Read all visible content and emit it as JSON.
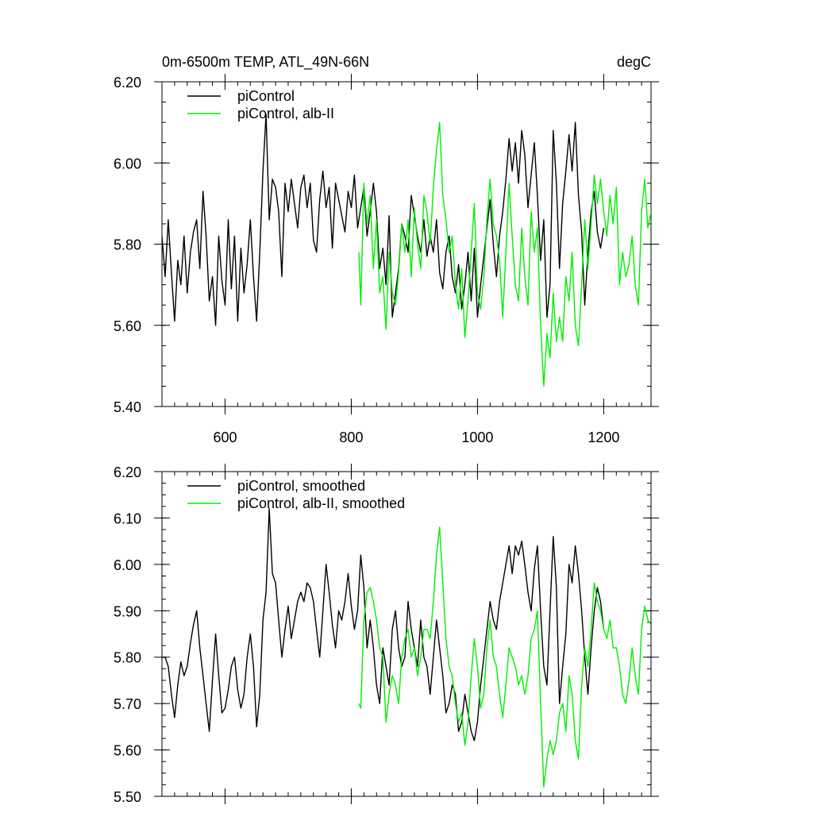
{
  "colors": {
    "series1": "#000000",
    "series2": "#00ee00",
    "axis": "#000000"
  },
  "chart_data": [
    {
      "type": "line",
      "title": "0m-6500m TEMP, ATL_49N-66N",
      "units": "degC",
      "xlim": [
        500,
        1275
      ],
      "ylim": [
        5.4,
        6.2
      ],
      "xticks": [
        600,
        800,
        1000,
        1200
      ],
      "xtick_labels": [
        "600",
        "800",
        "1000",
        "1200"
      ],
      "yticks": [
        5.4,
        5.6,
        5.8,
        6.0,
        6.2
      ],
      "ytick_labels": [
        "5.40",
        "5.60",
        "5.80",
        "6.00",
        "6.20"
      ],
      "legend": "top-left",
      "series": [
        {
          "name": "piControl",
          "x": [
            500,
            505,
            510,
            515,
            520,
            525,
            530,
            535,
            540,
            545,
            550,
            555,
            560,
            565,
            570,
            575,
            580,
            585,
            590,
            595,
            600,
            605,
            610,
            615,
            620,
            625,
            630,
            635,
            640,
            645,
            650,
            655,
            660,
            665,
            670,
            675,
            680,
            685,
            690,
            695,
            700,
            705,
            710,
            715,
            720,
            725,
            730,
            735,
            740,
            745,
            750,
            755,
            760,
            765,
            770,
            775,
            780,
            785,
            790,
            795,
            800,
            805,
            810,
            815,
            820,
            825,
            830,
            835,
            840,
            845,
            850,
            855,
            860,
            865,
            870,
            875,
            880,
            885,
            890,
            895,
            900,
            905,
            910,
            915,
            920,
            925,
            930,
            935,
            940,
            945,
            950,
            955,
            960,
            965,
            970,
            975,
            980,
            985,
            990,
            995,
            1000,
            1005,
            1010,
            1015,
            1020,
            1025,
            1030,
            1035,
            1040,
            1045,
            1050,
            1055,
            1060,
            1065,
            1070,
            1075,
            1080,
            1085,
            1090,
            1095,
            1100,
            1105,
            1110,
            1115,
            1120,
            1125,
            1130,
            1135,
            1140,
            1145,
            1150,
            1155,
            1160,
            1165,
            1170,
            1175,
            1180,
            1185,
            1190,
            1195,
            1200
          ],
          "values": [
            5.82,
            5.72,
            5.86,
            5.73,
            5.61,
            5.76,
            5.7,
            5.82,
            5.68,
            5.78,
            5.83,
            5.86,
            5.74,
            5.93,
            5.82,
            5.66,
            5.72,
            5.6,
            5.82,
            5.71,
            5.65,
            5.86,
            5.69,
            5.82,
            5.61,
            5.79,
            5.68,
            5.75,
            5.86,
            5.72,
            5.61,
            5.78,
            5.98,
            6.12,
            5.86,
            5.96,
            5.94,
            5.88,
            5.72,
            5.95,
            5.88,
            5.96,
            5.9,
            5.84,
            5.94,
            5.97,
            5.89,
            5.95,
            5.81,
            5.78,
            5.91,
            5.98,
            5.89,
            5.94,
            5.79,
            5.95,
            5.91,
            5.87,
            5.83,
            5.93,
            5.89,
            5.97,
            5.84,
            5.89,
            5.94,
            5.82,
            5.88,
            5.95,
            5.88,
            5.74,
            5.79,
            5.7,
            5.87,
            5.62,
            5.68,
            5.74,
            5.85,
            5.82,
            5.78,
            5.92,
            5.87,
            5.82,
            5.78,
            5.86,
            5.77,
            5.82,
            5.78,
            5.86,
            5.73,
            5.69,
            5.78,
            5.82,
            5.72,
            5.68,
            5.75,
            5.64,
            5.7,
            5.78,
            5.66,
            5.79,
            5.62,
            5.7,
            5.77,
            5.84,
            5.91,
            5.8,
            5.72,
            5.82,
            5.88,
            5.96,
            6.06,
            5.98,
            6.05,
            5.95,
            6.08,
            6.02,
            5.89,
            5.97,
            6.05,
            5.92,
            5.76,
            5.86,
            5.62,
            5.7,
            6.08,
            5.95,
            5.74,
            5.9,
            5.98,
            6.07,
            5.98,
            6.1,
            5.92,
            5.83,
            5.65,
            5.78,
            5.88,
            5.93,
            5.83,
            5.79,
            5.84
          ]
        },
        {
          "name": "piControl, alb-II",
          "x": [
            812,
            815,
            820,
            825,
            830,
            835,
            840,
            845,
            850,
            855,
            860,
            865,
            870,
            875,
            880,
            885,
            890,
            895,
            900,
            905,
            910,
            915,
            920,
            925,
            930,
            935,
            940,
            945,
            950,
            955,
            960,
            965,
            970,
            975,
            980,
            985,
            990,
            995,
            1000,
            1005,
            1010,
            1015,
            1020,
            1025,
            1030,
            1035,
            1040,
            1045,
            1050,
            1055,
            1060,
            1065,
            1070,
            1075,
            1080,
            1085,
            1090,
            1095,
            1100,
            1105,
            1110,
            1115,
            1120,
            1125,
            1130,
            1135,
            1140,
            1145,
            1150,
            1155,
            1160,
            1165,
            1170,
            1175,
            1180,
            1185,
            1190,
            1195,
            1200,
            1205,
            1210,
            1215,
            1220,
            1225,
            1230,
            1235,
            1240,
            1245,
            1250,
            1255,
            1260,
            1265,
            1270,
            1275
          ],
          "values": [
            5.78,
            5.65,
            5.95,
            5.85,
            5.92,
            5.74,
            5.86,
            5.68,
            5.72,
            5.59,
            5.78,
            5.68,
            5.65,
            5.73,
            5.85,
            5.78,
            5.86,
            5.72,
            5.89,
            5.8,
            5.74,
            5.92,
            5.88,
            5.8,
            5.94,
            6.03,
            6.1,
            5.92,
            5.86,
            5.78,
            5.82,
            5.7,
            5.64,
            5.74,
            5.57,
            5.66,
            5.78,
            5.9,
            5.68,
            5.64,
            5.72,
            5.86,
            5.96,
            5.85,
            5.82,
            5.76,
            5.62,
            5.78,
            5.95,
            5.82,
            5.7,
            5.66,
            5.84,
            5.72,
            5.65,
            5.88,
            5.78,
            5.84,
            5.6,
            5.45,
            5.58,
            5.52,
            5.68,
            5.56,
            5.62,
            5.56,
            5.72,
            5.66,
            5.78,
            5.6,
            5.55,
            5.7,
            5.86,
            5.74,
            5.85,
            5.97,
            5.9,
            5.96,
            5.88,
            5.82,
            5.92,
            5.85,
            5.94,
            5.7,
            5.78,
            5.72,
            5.75,
            5.82,
            5.7,
            5.65,
            5.88,
            5.96,
            5.84,
            5.88
          ]
        }
      ]
    },
    {
      "type": "line",
      "title": "",
      "xlim": [
        500,
        1275
      ],
      "ylim": [
        5.5,
        6.2
      ],
      "xticks": [
        600,
        800,
        1000,
        1200
      ],
      "yticks": [
        5.5,
        5.6,
        5.7,
        5.8,
        5.9,
        6.0,
        6.1,
        6.2
      ],
      "ytick_labels": [
        "5.50",
        "5.60",
        "5.70",
        "5.80",
        "5.90",
        "6.00",
        "6.10",
        "6.20"
      ],
      "legend": "top-left",
      "series": [
        {
          "name": "piControl, smoothed",
          "x": [
            500,
            505,
            510,
            515,
            520,
            525,
            530,
            535,
            540,
            545,
            550,
            555,
            560,
            565,
            570,
            575,
            580,
            585,
            590,
            595,
            600,
            605,
            610,
            615,
            620,
            625,
            630,
            635,
            640,
            645,
            650,
            655,
            660,
            665,
            670,
            675,
            680,
            685,
            690,
            695,
            700,
            705,
            710,
            715,
            720,
            725,
            730,
            735,
            740,
            745,
            750,
            755,
            760,
            765,
            770,
            775,
            780,
            785,
            790,
            795,
            800,
            805,
            810,
            815,
            820,
            825,
            830,
            835,
            840,
            845,
            850,
            855,
            860,
            865,
            870,
            875,
            880,
            885,
            890,
            895,
            900,
            905,
            910,
            915,
            920,
            925,
            930,
            935,
            940,
            945,
            950,
            955,
            960,
            965,
            970,
            975,
            980,
            985,
            990,
            995,
            1000,
            1005,
            1010,
            1015,
            1020,
            1025,
            1030,
            1035,
            1040,
            1045,
            1050,
            1055,
            1060,
            1065,
            1070,
            1075,
            1080,
            1085,
            1090,
            1095,
            1100,
            1105,
            1110,
            1115,
            1120,
            1125,
            1130,
            1135,
            1140,
            1145,
            1150,
            1155,
            1160,
            1165,
            1170,
            1175,
            1180,
            1185,
            1190,
            1195,
            1200
          ],
          "values": [
            5.8,
            5.8,
            5.78,
            5.72,
            5.67,
            5.74,
            5.79,
            5.76,
            5.78,
            5.83,
            5.87,
            5.9,
            5.82,
            5.76,
            5.7,
            5.64,
            5.75,
            5.85,
            5.76,
            5.68,
            5.69,
            5.73,
            5.78,
            5.8,
            5.73,
            5.69,
            5.72,
            5.8,
            5.85,
            5.78,
            5.65,
            5.72,
            5.88,
            5.94,
            6.12,
            5.98,
            5.96,
            5.88,
            5.8,
            5.86,
            5.91,
            5.84,
            5.88,
            5.92,
            5.94,
            5.92,
            5.96,
            5.95,
            5.92,
            5.86,
            5.8,
            5.9,
            6.0,
            5.94,
            5.87,
            5.82,
            5.9,
            5.88,
            5.92,
            5.98,
            5.91,
            5.86,
            5.9,
            6.02,
            5.95,
            5.82,
            5.88,
            5.82,
            5.74,
            5.7,
            5.82,
            5.78,
            5.74,
            5.86,
            5.9,
            5.82,
            5.78,
            5.8,
            5.92,
            5.86,
            5.82,
            5.78,
            5.88,
            5.8,
            5.78,
            5.72,
            5.8,
            5.88,
            5.82,
            5.76,
            5.68,
            5.7,
            5.74,
            5.72,
            5.64,
            5.66,
            5.72,
            5.68,
            5.64,
            5.62,
            5.66,
            5.74,
            5.8,
            5.86,
            5.92,
            5.88,
            5.86,
            5.92,
            5.96,
            6.0,
            6.04,
            5.98,
            6.04,
            6.02,
            6.05,
            6.0,
            5.94,
            5.9,
            5.99,
            6.04,
            5.9,
            5.78,
            5.74,
            5.9,
            6.06,
            5.95,
            5.7,
            5.78,
            5.85,
            6.0,
            5.96,
            6.04,
            5.98,
            5.9,
            5.8,
            5.72,
            5.82,
            5.9,
            5.95,
            5.92,
            5.86
          ]
        },
        {
          "name": "piControl, alb-II, smoothed",
          "x": [
            812,
            815,
            820,
            825,
            830,
            835,
            840,
            845,
            850,
            855,
            860,
            865,
            870,
            875,
            880,
            885,
            890,
            895,
            900,
            905,
            910,
            915,
            920,
            925,
            930,
            935,
            940,
            945,
            950,
            955,
            960,
            965,
            970,
            975,
            980,
            985,
            990,
            995,
            1000,
            1005,
            1010,
            1015,
            1020,
            1025,
            1030,
            1035,
            1040,
            1045,
            1050,
            1055,
            1060,
            1065,
            1070,
            1075,
            1080,
            1085,
            1090,
            1095,
            1100,
            1105,
            1110,
            1115,
            1120,
            1125,
            1130,
            1135,
            1140,
            1145,
            1150,
            1155,
            1160,
            1165,
            1170,
            1175,
            1180,
            1185,
            1190,
            1195,
            1200,
            1205,
            1210,
            1215,
            1220,
            1225,
            1230,
            1235,
            1240,
            1245,
            1250,
            1255,
            1260,
            1265,
            1270,
            1275
          ],
          "values": [
            5.7,
            5.69,
            5.88,
            5.94,
            5.95,
            5.92,
            5.88,
            5.82,
            5.8,
            5.66,
            5.72,
            5.76,
            5.74,
            5.7,
            5.8,
            5.84,
            5.86,
            5.8,
            5.82,
            5.76,
            5.8,
            5.86,
            5.86,
            5.84,
            5.92,
            6.02,
            6.08,
            5.96,
            5.84,
            5.78,
            5.76,
            5.7,
            5.66,
            5.68,
            5.61,
            5.66,
            5.76,
            5.84,
            5.78,
            5.69,
            5.72,
            5.82,
            5.88,
            5.8,
            5.78,
            5.72,
            5.67,
            5.74,
            5.82,
            5.8,
            5.78,
            5.74,
            5.76,
            5.72,
            5.76,
            5.84,
            5.86,
            5.9,
            5.7,
            5.52,
            5.58,
            5.62,
            5.59,
            5.62,
            5.68,
            5.7,
            5.64,
            5.76,
            5.72,
            5.62,
            5.58,
            5.74,
            5.82,
            5.78,
            5.86,
            5.96,
            5.92,
            5.9,
            5.86,
            5.84,
            5.88,
            5.82,
            5.82,
            5.78,
            5.72,
            5.7,
            5.75,
            5.82,
            5.76,
            5.72,
            5.86,
            5.91,
            5.88,
            5.87
          ]
        }
      ]
    }
  ]
}
